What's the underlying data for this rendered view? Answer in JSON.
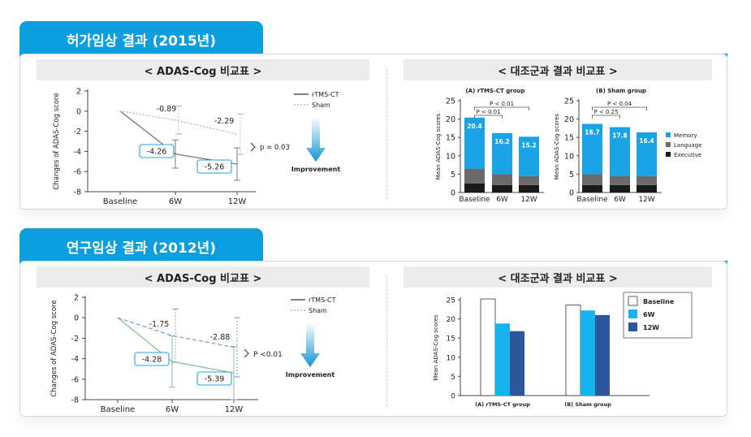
{
  "sections": [
    {
      "title": "허가임상 결과 (2015년)",
      "left_header": "< ADAS-Cog 비교표 >",
      "right_header": "< 대조군과 결과 비교표 >",
      "line_chart": {
        "type": "line",
        "ylabel": "Changes of ADAS-Cog score",
        "categories": [
          "Baseline",
          "6W",
          "12W"
        ],
        "yticks": [
          "2",
          "0",
          "-2",
          "-4",
          "-6",
          "-8"
        ],
        "ylim": [
          -8,
          2
        ],
        "series": [
          {
            "name": "rTMS-CT",
            "values": [
              0,
              -4.26,
              -5.26
            ],
            "err": [
              0,
              1.4,
              1.6
            ],
            "color": "#7a7a7a",
            "style": "solid"
          },
          {
            "name": "Sham",
            "values": [
              0,
              -0.89,
              -2.29
            ],
            "err": [
              0,
              1.4,
              2.0
            ],
            "color": "#b5b5b5",
            "style": "dotted"
          }
        ],
        "labels": {
          "rtms_6w": "-4.26",
          "rtms_12w": "-5.26",
          "sham_6w": "-0.89",
          "sham_12w": "-2.29"
        },
        "pvalue": "p = 0.03",
        "improvement": "Improvement"
      },
      "bar_charts": [
        {
          "type": "bar",
          "title": "(A) rTMS-CT group",
          "categories": [
            "Baseline",
            "6W",
            "12W"
          ],
          "totals": [
            "20.4",
            "16.2",
            "15.2"
          ],
          "series": [
            {
              "name": "Executive",
              "values": [
                2.5,
                2.0,
                2.0
              ]
            },
            {
              "name": "Language",
              "values": [
                4.0,
                3.0,
                2.5
              ]
            },
            {
              "name": "Memory",
              "values": [
                13.9,
                11.2,
                10.7
              ]
            }
          ],
          "ylabel": "Mean ADAS-Cog scores",
          "yticks": [
            "25",
            "20",
            "15",
            "10",
            "5",
            "0"
          ],
          "ylim": [
            0,
            25
          ],
          "p1": "P < 0.01",
          "p2": "P < 0.01"
        },
        {
          "type": "bar",
          "title": "(B) Sham group",
          "categories": [
            "Baseline",
            "6W",
            "12W"
          ],
          "totals": [
            "18.7",
            "17.8",
            "16.4"
          ],
          "series": [
            {
              "name": "Executive",
              "values": [
                2.0,
                2.0,
                2.0
              ]
            },
            {
              "name": "Language",
              "values": [
                3.0,
                2.5,
                2.5
              ]
            },
            {
              "name": "Memory",
              "values": [
                13.7,
                13.3,
                11.9
              ]
            }
          ],
          "ylabel": "Mean ADAS-Cog scores",
          "yticks": [
            "25",
            "20",
            "15",
            "10",
            "5",
            "0"
          ],
          "ylim": [
            0,
            25
          ],
          "p1": "P < 0.04",
          "p2": "P < 0.25"
        }
      ],
      "bar_legend": [
        {
          "name": "Memory",
          "color": "#1aa3e6"
        },
        {
          "name": "Language",
          "color": "#6b6b6b"
        },
        {
          "name": "Executive",
          "color": "#1a1a1a"
        }
      ]
    },
    {
      "title": "연구임상 결과 (2012년)",
      "left_header": "< ADAS-Cog 비교표 >",
      "right_header": "< 대조군과 결과 비교표 >",
      "line_chart": {
        "type": "line",
        "ylabel": "Changes of ADAS-Cog score",
        "categories": [
          "Baseline",
          "6W",
          "12W"
        ],
        "yticks": [
          "2",
          "0",
          "-2",
          "-4",
          "-6",
          "-8"
        ],
        "ylim": [
          -8,
          2
        ],
        "series": [
          {
            "name": "rTMS-CT",
            "values": [
              0,
              -4.28,
              -5.39
            ],
            "err": [
              0,
              2.5,
              2.6
            ],
            "color": "#8cbf8f",
            "style": "solid"
          },
          {
            "name": "Sham",
            "values": [
              0,
              -1.75,
              -2.88
            ],
            "err": [
              0,
              2.6,
              2.9
            ],
            "color": "#7f9ed1",
            "style": "dashed"
          }
        ],
        "labels": {
          "rtms_6w": "-4.28",
          "rtms_12w": "-5.39",
          "sham_6w": "-1.75",
          "sham_12w": "-2.88"
        },
        "pvalue": "P <0.01",
        "improvement": "Improvement"
      },
      "group_chart": {
        "type": "bar",
        "ylabel": "Mean ADAS-Cog scores",
        "yticks": [
          "25",
          "20",
          "15",
          "10",
          "5",
          "0"
        ],
        "ylim": [
          0,
          25
        ],
        "groups": [
          "(A) rTMS-CT group",
          "(B) Sham group"
        ],
        "series": [
          {
            "name": "Baseline",
            "values": [
              25.2,
              23.6
            ],
            "color": "#ffffff"
          },
          {
            "name": "6W",
            "values": [
              18.8,
              22.2
            ],
            "color": "#17b3ef"
          },
          {
            "name": "12W",
            "values": [
              16.8,
              21.0
            ],
            "color": "#2d579c"
          }
        ]
      }
    }
  ]
}
